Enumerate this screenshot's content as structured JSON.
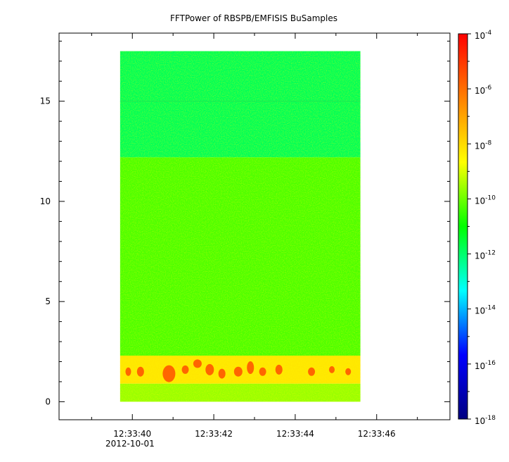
{
  "chart_data": {
    "type": "heatmap",
    "title": "FFTPower of RBSPB/EMFISIS  BuSamples",
    "xlabel": "",
    "ylabel": "",
    "x_axis": {
      "date": "2012-10-01",
      "ticks": [
        "12:33:40",
        "12:33:42",
        "12:33:44",
        "12:33:46"
      ],
      "range_seconds_after_12_33_00": [
        38.2,
        47.8
      ],
      "data_range_seconds_after_12_33_00": [
        39.7,
        45.6
      ]
    },
    "y_axis": {
      "ticks": [
        0,
        5,
        10,
        15
      ],
      "range": [
        -0.9,
        18.4
      ],
      "data_range": [
        0,
        17.5
      ]
    },
    "colorbar": {
      "scale": "log",
      "range": [
        1e-18,
        0.0001
      ],
      "tick_labels": [
        {
          "base": "10",
          "exp": "-4",
          "value": 0.0001
        },
        {
          "base": "10",
          "exp": "-6",
          "value": 1e-06
        },
        {
          "base": "10",
          "exp": "-8",
          "value": 1e-08
        },
        {
          "base": "10",
          "exp": "-10",
          "value": 1e-10
        },
        {
          "base": "10",
          "exp": "-12",
          "value": 1e-12
        },
        {
          "base": "10",
          "exp": "-14",
          "value": 1e-14
        },
        {
          "base": "10",
          "exp": "-16",
          "value": 1e-16
        },
        {
          "base": "10",
          "exp": "-18",
          "value": 1e-18
        }
      ],
      "colormap": [
        "#000080",
        "#0000ff",
        "#00ffff",
        "#00ff00",
        "#ffff00",
        "#ff8000",
        "#ff0000"
      ]
    },
    "bands": [
      {
        "y_range": [
          12.2,
          17.5
        ],
        "log_power": -11.8,
        "description_color": "#00ee66"
      },
      {
        "y_range": [
          2.3,
          12.2
        ],
        "log_power": -10.3,
        "description_color": "#44ee22"
      },
      {
        "y_range": [
          0.9,
          2.3
        ],
        "log_power": -8.2,
        "description_color": "#ffdd00"
      },
      {
        "y_range": [
          0,
          0.9
        ],
        "log_power": -9.6,
        "description_color": "#aaee22"
      }
    ],
    "grid": false,
    "legend": "colorbar-right"
  }
}
